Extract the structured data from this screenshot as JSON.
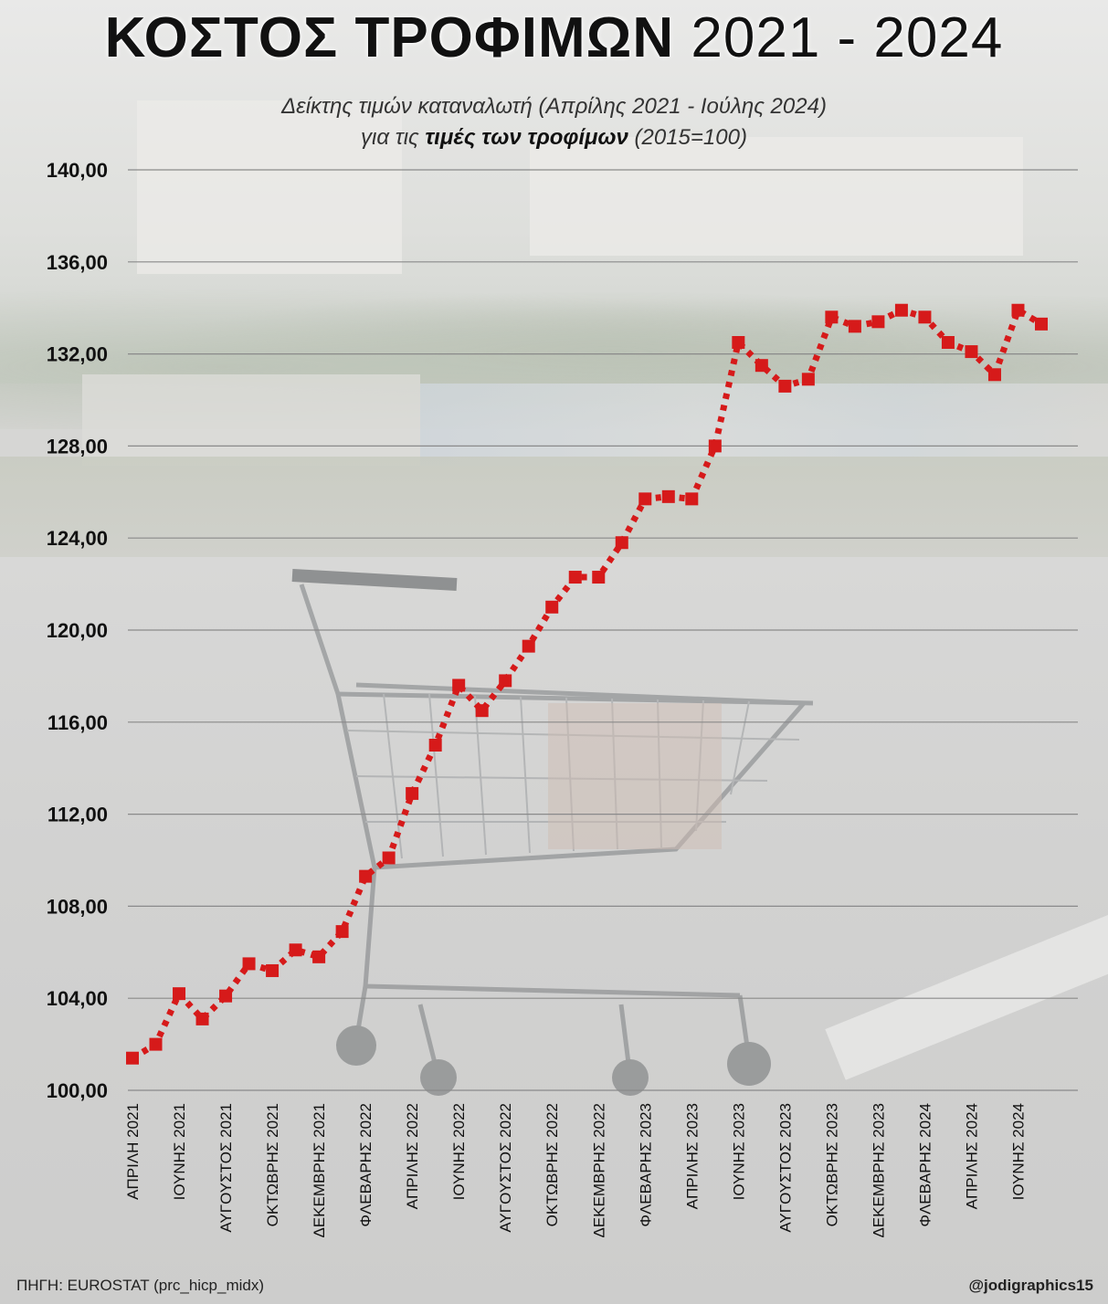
{
  "header": {
    "title_main": "ΚΟΣΤΟΣ ΤΡΟΦΙΜΩΝ",
    "title_years": "2021 - 2024",
    "subtitle_line1": "Δείκτης τιμών καταναλωτή (Απρίλης 2021 - Ιούλης 2024)",
    "subtitle_line2_pre": "για τις",
    "subtitle_line2_bold": "τιμές των τροφίμων",
    "subtitle_line2_post": "(2015=100)"
  },
  "footer": {
    "source": "ΠΗΓΗ: EUROSTAT (prc_hicp_midx)",
    "credit": "@jodigraphics15"
  },
  "chart_data": {
    "type": "line",
    "title": "ΚΟΣΤΟΣ ΤΡΟΦΙΜΩΝ 2021 - 2024",
    "xlabel": "",
    "ylabel": "",
    "ylim": [
      100,
      140
    ],
    "yticks": [
      100,
      104,
      108,
      112,
      116,
      120,
      124,
      128,
      132,
      136,
      140
    ],
    "ytick_labels": [
      "100,00",
      "104,00",
      "108,00",
      "112,00",
      "116,00",
      "120,00",
      "124,00",
      "128,00",
      "132,00",
      "136,00",
      "140,00"
    ],
    "grid": true,
    "line_style": "dotted",
    "line_color": "#d61a1a",
    "x_tick_labels": [
      "ΑΠΡΙΛΗ 2021",
      "ΙΟΥΝΗΣ 2021",
      "ΑΥΓΟΥΣΤΟΣ 2021",
      "ΟΚΤΩΒΡΗΣ 2021",
      "ΔΕΚΕΜΒΡΗΣ 2021",
      "ΦΛΕΒΑΡΗΣ 2022",
      "ΑΠΡΙΛΗΣ 2022",
      "ΙΟΥΝΗΣ 2022",
      "ΑΥΓΟΥΣΤΟΣ 2022",
      "ΟΚΤΩΒΡΗΣ 2022",
      "ΔΕΚΕΜΒΡΗΣ 2022",
      "ΦΛΕΒΑΡΗΣ 2023",
      "ΑΠΡΙΛΗΣ 2023",
      "ΙΟΥΝΗΣ 2023",
      "ΑΥΓΟΥΣΤΟΣ 2023",
      "ΟΚΤΩΒΡΗΣ 2023",
      "ΔΕΚΕΜΒΡΗΣ 2023",
      "ΦΛΕΒΑΡΗΣ 2024",
      "ΑΠΡΙΛΗΣ 2024",
      "ΙΟΥΝΗΣ 2024"
    ],
    "x": [
      "2021-04",
      "2021-05",
      "2021-06",
      "2021-07",
      "2021-08",
      "2021-09",
      "2021-10",
      "2021-11",
      "2021-12",
      "2022-01",
      "2022-02",
      "2022-03",
      "2022-04",
      "2022-05",
      "2022-06",
      "2022-07",
      "2022-08",
      "2022-09",
      "2022-10",
      "2022-11",
      "2022-12",
      "2023-01",
      "2023-02",
      "2023-03",
      "2023-04",
      "2023-05",
      "2023-06",
      "2023-07",
      "2023-08",
      "2023-09",
      "2023-10",
      "2023-11",
      "2023-12",
      "2024-01",
      "2024-02",
      "2024-03",
      "2024-04",
      "2024-05",
      "2024-06",
      "2024-07"
    ],
    "values": [
      101.4,
      102.0,
      104.2,
      103.1,
      104.1,
      105.5,
      105.2,
      106.1,
      105.8,
      106.9,
      109.3,
      110.1,
      112.9,
      115.0,
      117.6,
      116.5,
      117.8,
      119.3,
      121.0,
      122.3,
      122.3,
      123.8,
      125.7,
      125.8,
      125.7,
      128.0,
      132.5,
      131.5,
      130.6,
      130.9,
      133.6,
      133.2,
      133.4,
      133.9,
      133.6,
      132.5,
      132.1,
      131.1,
      133.9,
      133.3
    ]
  }
}
